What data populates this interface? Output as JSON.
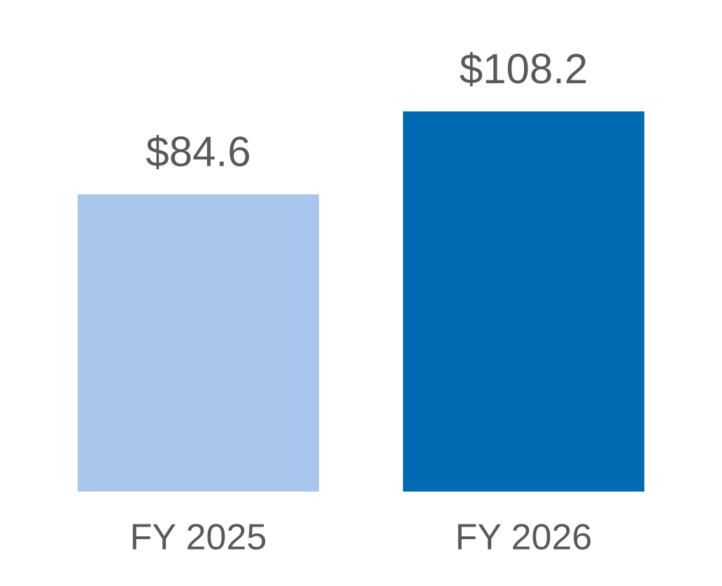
{
  "chart_data": {
    "type": "bar",
    "categories": [
      "FY 2025",
      "FY 2026"
    ],
    "values": [
      84.6,
      108.2
    ],
    "value_labels": [
      "$84.6",
      "$108.2"
    ],
    "colors": [
      "#a9c6ec",
      "#006ab3"
    ]
  }
}
